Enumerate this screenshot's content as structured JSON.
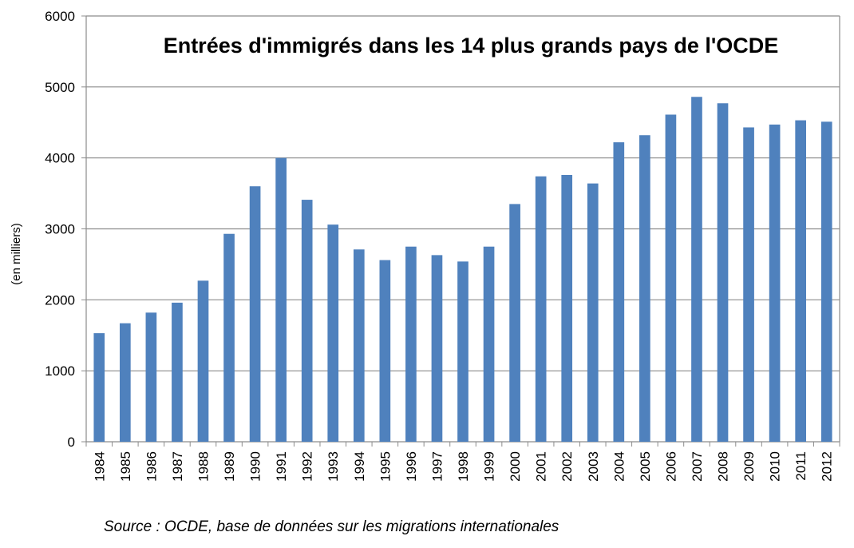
{
  "chart_data": {
    "type": "bar",
    "title": "Entrées d'immigrés dans les 14 plus grands pays de l'OCDE",
    "xlabel": "",
    "ylabel": "(en milliers)",
    "ylim": [
      0,
      6000
    ],
    "yticks": [
      0,
      1000,
      2000,
      3000,
      4000,
      5000,
      6000
    ],
    "grid": true,
    "bar_color": "#4F81BD",
    "categories": [
      "1984",
      "1985",
      "1986",
      "1987",
      "1988",
      "1989",
      "1990",
      "1991",
      "1992",
      "1993",
      "1994",
      "1995",
      "1996",
      "1997",
      "1998",
      "1999",
      "2000",
      "2001",
      "2002",
      "2003",
      "2004",
      "2005",
      "2006",
      "2007",
      "2008",
      "2009",
      "2010",
      "2011",
      "2012"
    ],
    "values": [
      1530,
      1670,
      1820,
      1960,
      2270,
      2930,
      3600,
      4000,
      3410,
      3060,
      2710,
      2560,
      2750,
      2630,
      2540,
      2750,
      3350,
      3740,
      3760,
      3640,
      4220,
      4320,
      4610,
      4860,
      4770,
      4430,
      4470,
      4530,
      4510
    ],
    "source": "Source : OCDE, base de données sur les migrations internationales"
  }
}
